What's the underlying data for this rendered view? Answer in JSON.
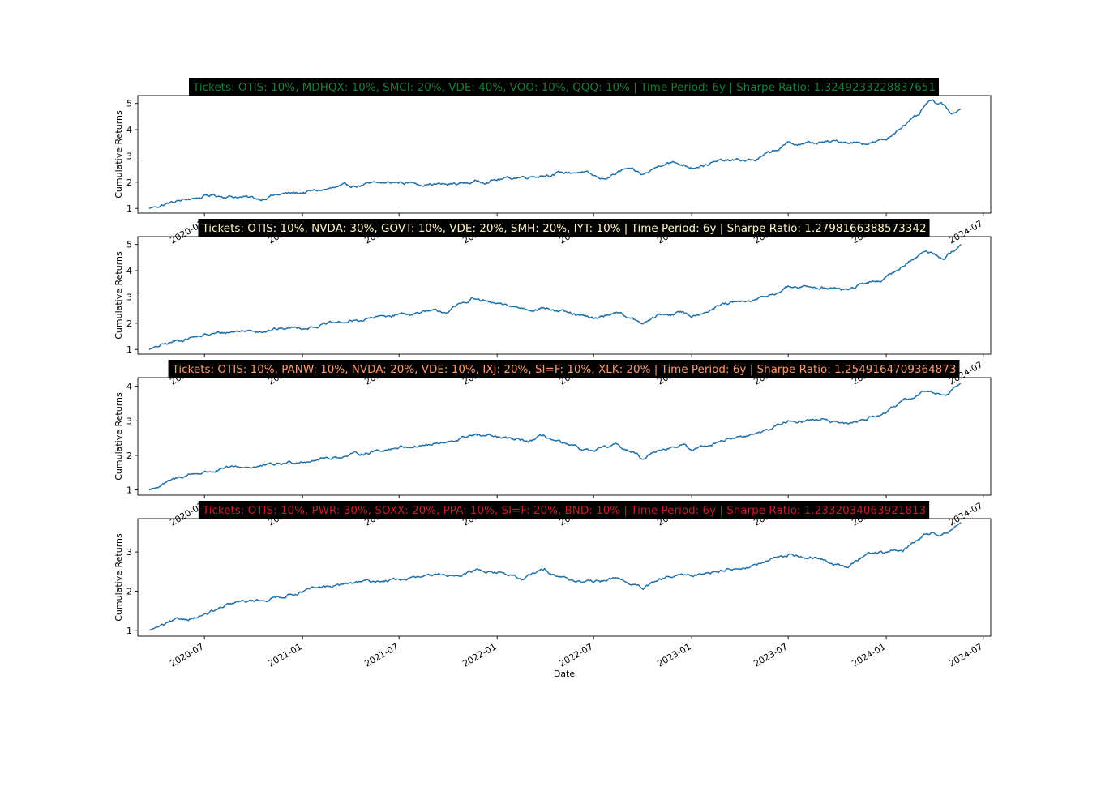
{
  "figure": {
    "xlabel": "Date",
    "x_tick_labels": [
      "2020-07",
      "2021-01",
      "2021-07",
      "2022-01",
      "2022-07",
      "2023-01",
      "2023-07",
      "2024-01",
      "2024-07"
    ],
    "line_color": "#1f6fa8",
    "title_box_color": "#000000"
  },
  "chart_data": [
    {
      "type": "line",
      "title": "Tickets: OTIS: 10%, MDHQX: 10%, SMCI: 20%, VDE: 40%, VOO: 10%, QQQ: 10% | Time Period: 6y | Sharpe Ratio: 1.3249233228837651",
      "title_color": "#1f7a3c",
      "ylabel": "Cumulative Returns",
      "xlim": [
        "2020-02-27",
        "2024-07-15"
      ],
      "ylim": [
        0.82,
        5.3
      ],
      "yticks": [
        1,
        2,
        3,
        4,
        5
      ],
      "x": [
        "2020-03-19",
        "2020-04-15",
        "2020-06-01",
        "2020-07-15",
        "2020-09-01",
        "2020-10-15",
        "2020-11-01",
        "2021-01-01",
        "2021-04-01",
        "2021-07-01",
        "2021-10-01",
        "2022-01-01",
        "2022-04-01",
        "2022-06-08",
        "2022-07-15",
        "2022-09-01",
        "2022-10-01",
        "2022-11-15",
        "2023-01-01",
        "2023-03-01",
        "2023-05-01",
        "2023-07-01",
        "2023-09-01",
        "2023-10-15",
        "2023-12-01",
        "2024-01-01",
        "2024-02-01",
        "2024-03-01",
        "2024-03-20",
        "2024-04-15",
        "2024-05-01",
        "2024-05-20"
      ],
      "y": [
        1.0,
        1.15,
        1.35,
        1.5,
        1.45,
        1.35,
        1.5,
        1.6,
        1.85,
        2.0,
        1.9,
        2.1,
        2.3,
        2.4,
        2.1,
        2.5,
        2.25,
        2.8,
        2.6,
        2.8,
        2.85,
        3.45,
        3.5,
        3.55,
        3.5,
        3.6,
        4.2,
        4.5,
        5.05,
        4.95,
        4.6,
        4.8
      ]
    },
    {
      "type": "line",
      "title": "Tickets: OTIS: 10%, NVDA: 30%, GOVT: 10%, VDE: 20%, SMH: 20%, IYT: 10% | Time Period: 6y | Sharpe Ratio: 1.2798166388573342",
      "title_color": "#fff6c8",
      "ylabel": "Cumulative Returns",
      "xlim": [
        "2020-02-27",
        "2024-07-15"
      ],
      "ylim": [
        0.82,
        5.3
      ],
      "yticks": [
        1,
        2,
        3,
        4,
        5
      ],
      "x": [
        "2020-03-19",
        "2020-06-01",
        "2020-09-01",
        "2020-11-01",
        "2021-01-01",
        "2021-04-01",
        "2021-07-01",
        "2021-10-01",
        "2021-11-15",
        "2022-01-01",
        "2022-03-01",
        "2022-04-01",
        "2022-05-15",
        "2022-07-01",
        "2022-08-15",
        "2022-10-01",
        "2022-11-01",
        "2022-12-15",
        "2023-01-01",
        "2023-03-01",
        "2023-05-01",
        "2023-07-01",
        "2023-09-01",
        "2023-10-15",
        "2023-12-01",
        "2024-01-01",
        "2024-02-15",
        "2024-03-15",
        "2024-04-20",
        "2024-05-20"
      ],
      "y": [
        1.0,
        1.45,
        1.7,
        1.75,
        1.85,
        2.05,
        2.35,
        2.45,
        2.95,
        2.7,
        2.55,
        2.6,
        2.35,
        2.15,
        2.45,
        1.95,
        2.3,
        2.4,
        2.3,
        2.7,
        2.85,
        3.35,
        3.4,
        3.25,
        3.55,
        3.7,
        4.4,
        4.75,
        4.5,
        5.0
      ]
    },
    {
      "type": "line",
      "title": "Tickets: OTIS: 10%, PANW: 10%, NVDA: 20%, VDE: 10%, IXJ: 20%, SI=F: 10%, XLK: 20% | Time Period: 6y | Sharpe Ratio: 1.2549164709364873",
      "title_color": "#ff9a6a",
      "ylabel": "Cumulative Returns",
      "xlim": [
        "2020-02-27",
        "2024-07-15"
      ],
      "ylim": [
        0.85,
        4.25
      ],
      "yticks": [
        1,
        2,
        3,
        4
      ],
      "x": [
        "2020-03-19",
        "2020-06-01",
        "2020-09-01",
        "2020-11-01",
        "2021-01-01",
        "2021-04-01",
        "2021-07-01",
        "2021-10-01",
        "2021-11-15",
        "2022-01-01",
        "2022-03-01",
        "2022-04-01",
        "2022-05-15",
        "2022-07-01",
        "2022-08-15",
        "2022-10-01",
        "2022-11-01",
        "2022-12-15",
        "2023-01-01",
        "2023-03-01",
        "2023-05-01",
        "2023-07-01",
        "2023-09-01",
        "2023-10-15",
        "2023-12-01",
        "2024-01-01",
        "2024-02-15",
        "2024-03-15",
        "2024-04-20",
        "2024-05-20"
      ],
      "y": [
        1.0,
        1.45,
        1.65,
        1.7,
        1.85,
        2.0,
        2.25,
        2.35,
        2.6,
        2.5,
        2.4,
        2.55,
        2.25,
        2.1,
        2.3,
        1.9,
        2.2,
        2.3,
        2.15,
        2.45,
        2.6,
        3.0,
        3.05,
        2.85,
        3.1,
        3.25,
        3.65,
        3.85,
        3.75,
        4.1
      ]
    },
    {
      "type": "line",
      "title": "Tickets: OTIS: 10%, PWR: 30%, SOXX: 20%, PPA: 10%, SI=F: 20%, BND: 10% | Time Period: 6y | Sharpe Ratio: 1.2332034063921813",
      "title_color": "#c0202a",
      "ylabel": "Cumulative Returns",
      "xlim": [
        "2020-02-27",
        "2024-07-15"
      ],
      "ylim": [
        0.85,
        3.85
      ],
      "yticks": [
        1,
        2,
        3
      ],
      "x": [
        "2020-03-19",
        "2020-05-01",
        "2020-07-01",
        "2020-09-01",
        "2020-11-01",
        "2021-01-01",
        "2021-04-01",
        "2021-07-01",
        "2021-10-01",
        "2021-12-01",
        "2022-01-15",
        "2022-02-15",
        "2022-04-01",
        "2022-05-15",
        "2022-07-01",
        "2022-08-15",
        "2022-10-01",
        "2022-11-15",
        "2023-01-01",
        "2023-03-01",
        "2023-05-01",
        "2023-07-01",
        "2023-09-01",
        "2023-10-20",
        "2023-12-01",
        "2024-01-01",
        "2024-02-01",
        "2024-03-15",
        "2024-04-20",
        "2024-05-20"
      ],
      "y": [
        1.0,
        1.2,
        1.4,
        1.7,
        1.8,
        2.0,
        2.2,
        2.3,
        2.4,
        2.55,
        2.45,
        2.3,
        2.55,
        2.3,
        2.2,
        2.35,
        2.05,
        2.35,
        2.4,
        2.55,
        2.65,
        2.95,
        2.8,
        2.6,
        3.0,
        3.0,
        3.05,
        3.45,
        3.5,
        3.75
      ]
    }
  ]
}
